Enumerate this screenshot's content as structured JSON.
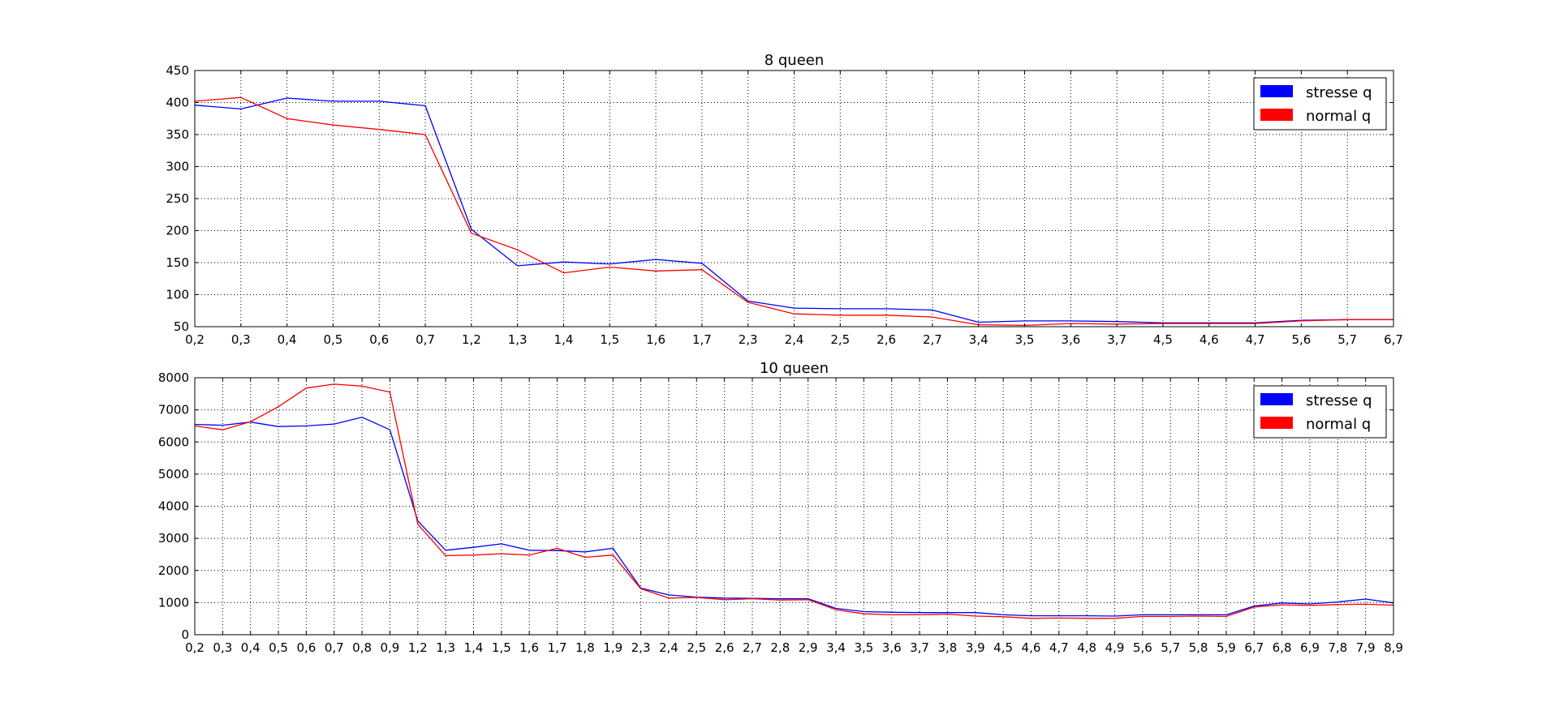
{
  "colors": {
    "stresse": "#0000ff",
    "normal": "#ff0000",
    "grid": "#000000",
    "background": "#ffffff"
  },
  "chart_data": [
    {
      "type": "line",
      "title": "8 queen",
      "xlabel": "",
      "ylabel": "",
      "categories": [
        "0,2",
        "0,3",
        "0,4",
        "0,5",
        "0,6",
        "0,7",
        "1,2",
        "1,3",
        "1,4",
        "1,5",
        "1,6",
        "1,7",
        "2,3",
        "2,4",
        "2,5",
        "2,6",
        "2,7",
        "3,4",
        "3,5",
        "3,6",
        "3,7",
        "4,5",
        "4,6",
        "4,7",
        "5,6",
        "5,7",
        "6,7"
      ],
      "ylim": [
        50,
        450
      ],
      "yticks": [
        50,
        100,
        150,
        200,
        250,
        300,
        350,
        400,
        450
      ],
      "grid": true,
      "legend": "top-right",
      "series": [
        {
          "name": "stresse q",
          "color": "#0000ff",
          "values": [
            396,
            390,
            407,
            402,
            402,
            395,
            202,
            145,
            151,
            148,
            155,
            149,
            90,
            79,
            78,
            78,
            76,
            57,
            59,
            59,
            58,
            56,
            56,
            56,
            60,
            61,
            61
          ]
        },
        {
          "name": "normal q",
          "color": "#ff0000",
          "values": [
            402,
            408,
            375,
            365,
            358,
            350,
            196,
            170,
            134,
            143,
            137,
            139,
            88,
            70,
            68,
            68,
            65,
            53,
            52,
            55,
            54,
            55,
            55,
            55,
            59,
            61,
            61
          ]
        }
      ]
    },
    {
      "type": "line",
      "title": "10 queen",
      "xlabel": "",
      "ylabel": "",
      "categories": [
        "0,2",
        "0,3",
        "0,4",
        "0,5",
        "0,6",
        "0,7",
        "0,8",
        "0,9",
        "1,2",
        "1,3",
        "1,4",
        "1,5",
        "1,6",
        "1,7",
        "1,8",
        "1,9",
        "2,3",
        "2,4",
        "2,5",
        "2,6",
        "2,7",
        "2,8",
        "2,9",
        "3,4",
        "3,5",
        "3,6",
        "3,7",
        "3,8",
        "3,9",
        "4,5",
        "4,6",
        "4,7",
        "4,8",
        "4,9",
        "5,6",
        "5,7",
        "5,8",
        "5,9",
        "6,7",
        "6,8",
        "6,9",
        "7,8",
        "7,9",
        "8,9"
      ],
      "ylim": [
        0,
        8000
      ],
      "yticks": [
        0,
        1000,
        2000,
        3000,
        4000,
        5000,
        6000,
        7000,
        8000
      ],
      "grid": true,
      "legend": "top-right",
      "series": [
        {
          "name": "stresse q",
          "color": "#0000ff",
          "values": [
            6550,
            6520,
            6620,
            6480,
            6500,
            6560,
            6770,
            6380,
            3540,
            2630,
            2720,
            2830,
            2630,
            2620,
            2580,
            2690,
            1450,
            1240,
            1170,
            1140,
            1130,
            1120,
            1120,
            820,
            720,
            700,
            690,
            690,
            690,
            620,
            590,
            590,
            590,
            580,
            620,
            620,
            620,
            620,
            890,
            990,
            960,
            1020,
            1110,
            990
          ]
        },
        {
          "name": "normal q",
          "color": "#ff0000",
          "values": [
            6500,
            6380,
            6630,
            7100,
            7680,
            7800,
            7740,
            7550,
            3440,
            2460,
            2480,
            2520,
            2480,
            2690,
            2410,
            2480,
            1430,
            1140,
            1160,
            1090,
            1120,
            1080,
            1090,
            780,
            650,
            620,
            620,
            640,
            580,
            560,
            510,
            520,
            510,
            510,
            570,
            570,
            580,
            570,
            860,
            930,
            910,
            940,
            950,
            920
          ]
        }
      ]
    }
  ]
}
